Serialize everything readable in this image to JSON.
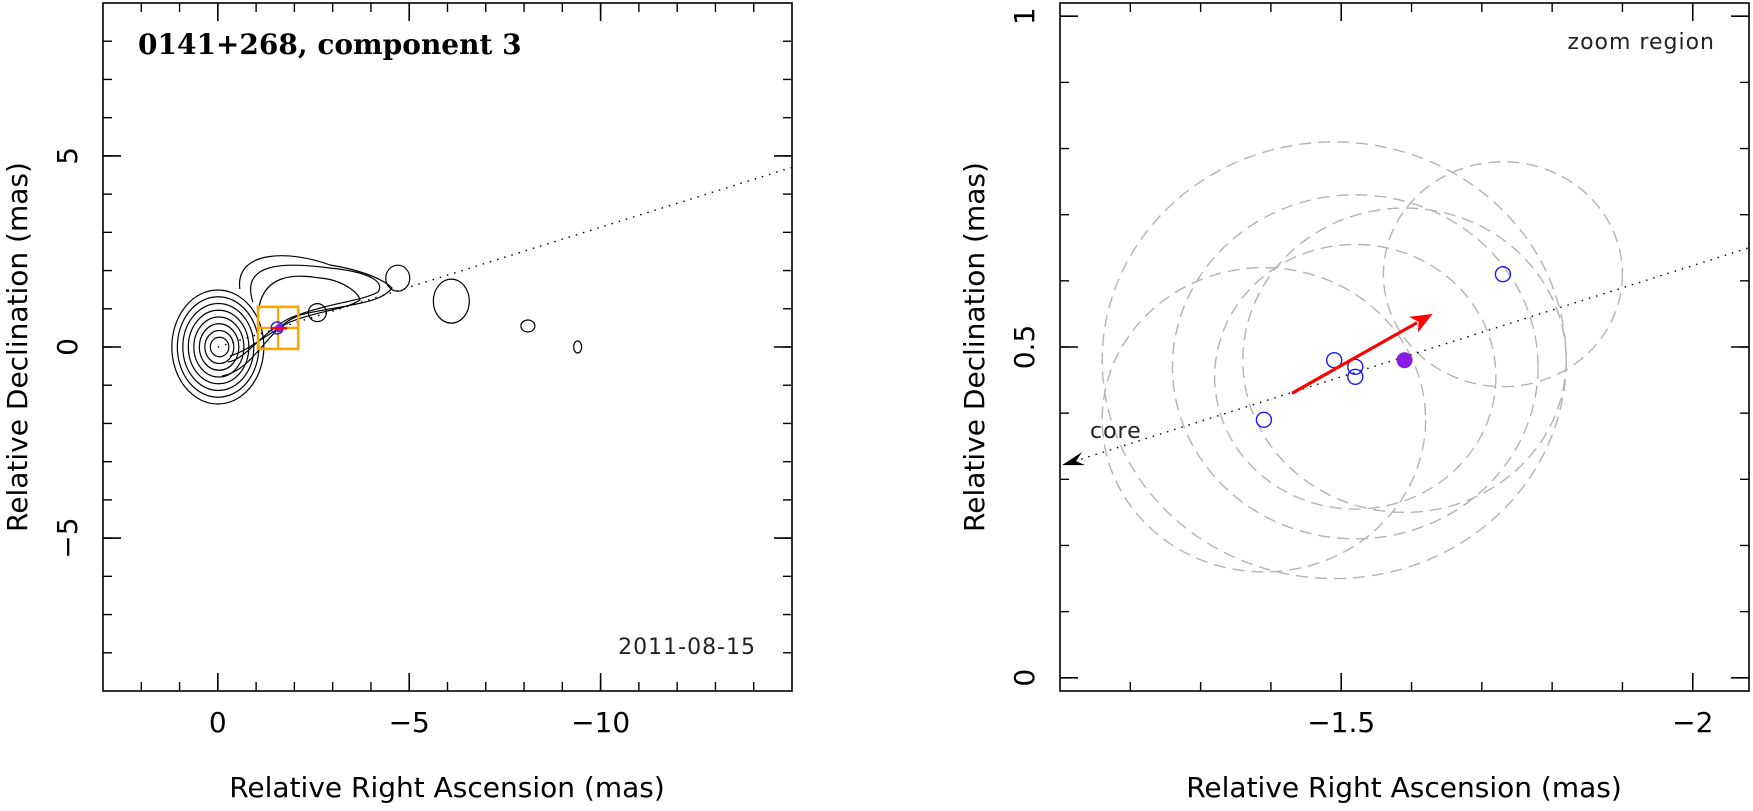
{
  "chart_data": [
    {
      "type": "scatter",
      "title": "0141+268, component 3",
      "annotation": "2011-08-15",
      "xlabel": "Relative Right Ascension (mas)",
      "ylabel": "Relative Declination (mas)",
      "xlim": [
        3,
        -15
      ],
      "ylim": [
        -9,
        9
      ],
      "x_ticks": [
        0,
        -5,
        -10
      ],
      "x_tick_labels": [
        "0",
        "−5",
        "−10"
      ],
      "y_ticks": [
        -5,
        0,
        5
      ],
      "y_tick_labels": [
        "−5",
        "0",
        "5"
      ],
      "grid": false,
      "jet_axis": {
        "x": [
          0,
          -15
        ],
        "y": [
          0,
          4.7
        ],
        "style": "dotted"
      },
      "zoom_box": {
        "x": [
          -1.05,
          -2.1
        ],
        "y": [
          -0.05,
          1.05
        ]
      },
      "components": [
        {
          "x": -1.55,
          "y": 0.5,
          "kind": "blue-circle"
        },
        {
          "x": -1.6,
          "y": 0.49,
          "kind": "filled"
        }
      ],
      "contours": {
        "core_center": [
          0,
          0
        ],
        "core_levels": 8,
        "blobs": [
          {
            "x": -2.6,
            "y": 0.9
          },
          {
            "x": -4.7,
            "y": 1.8
          },
          {
            "x": -6.1,
            "y": 1.2
          },
          {
            "x": -8.1,
            "y": 0.55
          },
          {
            "x": -9.4,
            "y": 0.0
          }
        ]
      }
    },
    {
      "type": "scatter",
      "title": "zoom region",
      "xlabel": "Relative Right Ascension (mas)",
      "ylabel": "Relative Declination (mas)",
      "xlim": [
        -1.1,
        -2.08
      ],
      "ylim": [
        -0.02,
        1.02
      ],
      "x_ticks": [
        -1.5,
        -2
      ],
      "x_tick_labels": [
        "−1.5",
        "−2"
      ],
      "y_ticks": [
        0,
        0.5,
        1
      ],
      "y_tick_labels": [
        "0",
        "0.5",
        "1"
      ],
      "grid": false,
      "core_label": "core",
      "jet_axis": {
        "x": [
          -1.1,
          -2.08
        ],
        "y": [
          0.32,
          0.65
        ],
        "style": "dotted"
      },
      "velocity_arrow": {
        "from": [
          -1.43,
          0.43
        ],
        "to": [
          -1.63,
          0.55
        ],
        "color": "#ff0000"
      },
      "points": [
        {
          "x": -1.39,
          "y": 0.39,
          "kind": "blue-circle"
        },
        {
          "x": -1.49,
          "y": 0.48,
          "kind": "blue-circle"
        },
        {
          "x": -1.52,
          "y": 0.47,
          "kind": "blue-circle"
        },
        {
          "x": -1.52,
          "y": 0.455,
          "kind": "blue-circle"
        },
        {
          "x": -1.73,
          "y": 0.61,
          "kind": "blue-circle"
        },
        {
          "x": -1.59,
          "y": 0.48,
          "kind": "filled-purple"
        }
      ],
      "uncertainty_circles": [
        {
          "x": -1.39,
          "y": 0.39,
          "r": 0.23
        },
        {
          "x": -1.49,
          "y": 0.48,
          "r": 0.33
        },
        {
          "x": -1.52,
          "y": 0.47,
          "r": 0.26
        },
        {
          "x": -1.52,
          "y": 0.455,
          "r": 0.2
        },
        {
          "x": -1.73,
          "y": 0.61,
          "r": 0.17
        },
        {
          "x": -1.59,
          "y": 0.48,
          "r": 0.23
        }
      ]
    }
  ],
  "colors": {
    "axis": "#000000",
    "component_circle": "#1a1aff",
    "filled_component": "#8a1ae6",
    "arrow": "#ff0000",
    "zoom_box": "#ffa500",
    "dashed_circle": "#b3b3b3"
  }
}
